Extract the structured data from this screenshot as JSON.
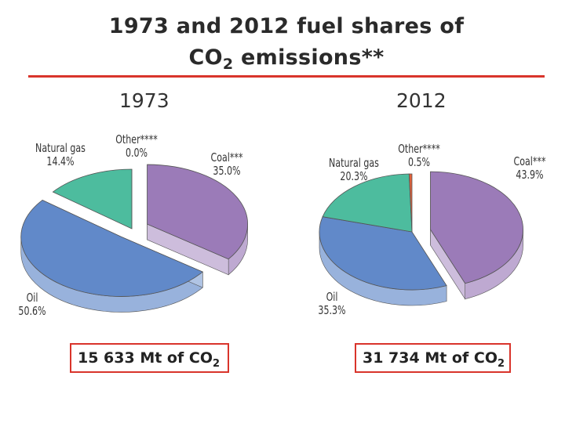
{
  "title_line1": "1973 and 2012 fuel shares of",
  "title_line2_main": "CO",
  "title_line2_sub": "2",
  "title_line2_rest": " emissions**",
  "colors": {
    "rule": "#d9342b",
    "coal": "#9b7bb8",
    "oil": "#6189c9",
    "natural_gas": "#4dbc9e",
    "other": "#e0603a"
  },
  "chart_data": [
    {
      "type": "pie",
      "title": "1973",
      "series": [
        {
          "name": "Coal***",
          "label": "35.0%",
          "value": 35.0
        },
        {
          "name": "Oil",
          "label": "50.6%",
          "value": 50.6
        },
        {
          "name": "Natural gas",
          "label": "14.4%",
          "value": 14.4
        },
        {
          "name": "Other****",
          "label": "0.0%",
          "value": 0.0
        }
      ],
      "exploded": [
        "Coal***",
        "Oil"
      ],
      "total_main": "15 633 Mt of CO",
      "total_sub": "2"
    },
    {
      "type": "pie",
      "title": "2012",
      "series": [
        {
          "name": "Coal***",
          "label": "43.9%",
          "value": 43.9
        },
        {
          "name": "Oil",
          "label": "35.3%",
          "value": 35.3
        },
        {
          "name": "Natural gas",
          "label": "20.3%",
          "value": 20.3
        },
        {
          "name": "Other****",
          "label": "0.5%",
          "value": 0.5
        }
      ],
      "exploded": [
        "Coal***"
      ],
      "total_main": "31 734 Mt of CO",
      "total_sub": "2"
    }
  ]
}
